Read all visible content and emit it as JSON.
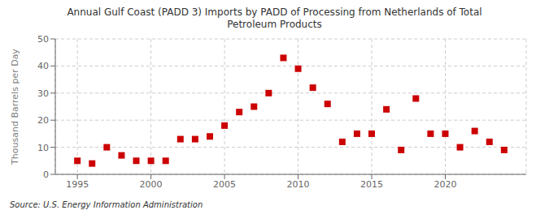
{
  "chart_data": {
    "type": "scatter",
    "title": "Annual Gulf Coast (PADD 3) Imports by PADD of Processing from Netherlands of Total\nPetroleum Products",
    "ylabel": "Thousand Barrels per Day",
    "source": "Source: U.S. Energy Information Administration",
    "x": [
      1995,
      1996,
      1997,
      1998,
      1999,
      2000,
      2001,
      2002,
      2003,
      2004,
      2005,
      2006,
      2007,
      2008,
      2009,
      2010,
      2011,
      2012,
      2013,
      2014,
      2015,
      2016,
      2017,
      2018,
      2019,
      2020,
      2021,
      2022,
      2023,
      2024
    ],
    "values": [
      5,
      4,
      10,
      7,
      5,
      5,
      5,
      13,
      13,
      14,
      18,
      23,
      25,
      30,
      43,
      39,
      32,
      26,
      12,
      15,
      15,
      24,
      9,
      28,
      15,
      15,
      10,
      16,
      12,
      9
    ],
    "xlim": [
      1993.5,
      2025.5
    ],
    "ylim": [
      0,
      50
    ],
    "xticks": [
      1995,
      2000,
      2005,
      2010,
      2015,
      2020
    ],
    "yticks": [
      0,
      10,
      20,
      30,
      40,
      50
    ],
    "grid": true,
    "color": "#cc0000",
    "marker": "square"
  }
}
